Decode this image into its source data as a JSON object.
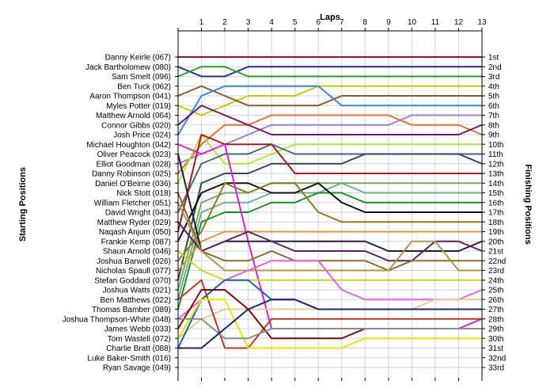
{
  "chart_data": {
    "type": "line",
    "title": "",
    "top_axis_title": "Laps",
    "left_axis_title": "Starting Positions",
    "right_axis_title": "Finishing Positions",
    "laps": [
      0,
      1,
      2,
      3,
      4,
      5,
      6,
      7,
      8,
      9,
      10,
      11,
      12,
      13
    ],
    "lap_tick_labels": [
      "1",
      "2",
      "3",
      "4",
      "5",
      "6",
      "7",
      "8",
      "9",
      "10",
      "11",
      "12",
      "13"
    ],
    "grid": true,
    "starting_labels": [
      "Danny Keirle (067)",
      "Jack Bartholomew (080)",
      "Sam Smelt (096)",
      "Ben Tuck (062)",
      "Aaron Thompson (041)",
      "Myles Potter (019)",
      "Matthew Arnold (064)",
      "Connor Gibbs (020)",
      "Josh Price (024)",
      "Michael Houghton (042)",
      "Oliver Peacock (023)",
      "Elliot Goodman (028)",
      "Danny Robinson (025)",
      "Daniel O'Beirne (036)",
      "Nick Stott (018)",
      "William Fletcher (051)",
      "David Wright (043)",
      "Matthew Ryder (029)",
      "Naqash Anjum (050)",
      "Frankie Kemp (087)",
      "Shaun Arnold (046)",
      "Joshua Barwell (026)",
      "Nicholas Spaull (077)",
      "Stefan Goddard (070)",
      "Joshua Watts (021)",
      "Ben Matthews (022)",
      "Thomas Bamber (089)",
      "Joshua Thompson-White (048)",
      "James Webb (033)",
      "Tom Wastell (072)",
      "Charlie Bratt (088)",
      "Luke Baker-Smith (016)",
      "Ryan Savage (049)"
    ],
    "finishing_labels": [
      "1st",
      "2nd",
      "3rd",
      "4th",
      "5th",
      "6th",
      "7th",
      "8th",
      "9th",
      "10th",
      "11th",
      "12th",
      "13th",
      "14th",
      "15th",
      "16th",
      "17th",
      "18th",
      "19th",
      "20th",
      "21st",
      "22nd",
      "23rd",
      "24th",
      "25th",
      "26th",
      "27th",
      "28th",
      "29th",
      "30th",
      "31st",
      "32nd",
      "33rd"
    ],
    "series": [
      {
        "color": "#8b1a1a",
        "positions": [
          1,
          1,
          1,
          1,
          1,
          1,
          1,
          1,
          1,
          1,
          1,
          1,
          1,
          1
        ]
      },
      {
        "color": "#1e2e8c",
        "positions": [
          2,
          3,
          3,
          2,
          2,
          2,
          2,
          2,
          2,
          2,
          2,
          2,
          2,
          2
        ]
      },
      {
        "color": "#2a9d2a",
        "positions": [
          3,
          2,
          2,
          3,
          3,
          3,
          3,
          3,
          3,
          3,
          3,
          3,
          3,
          3
        ]
      },
      {
        "color": "#c8c800",
        "positions": [
          6,
          7,
          6,
          5,
          5,
          5,
          4,
          4,
          4,
          4,
          4,
          4,
          4,
          4
        ]
      },
      {
        "color": "#8b5a2b",
        "positions": [
          5,
          4,
          5,
          6,
          6,
          6,
          6,
          5,
          5,
          5,
          5,
          5,
          5,
          5
        ]
      },
      {
        "color": "#3a86d4",
        "positions": [
          9,
          5,
          4,
          4,
          4,
          4,
          4,
          6,
          6,
          6,
          6,
          6,
          6,
          6
        ]
      },
      {
        "color": "#9a7fcf",
        "positions": [
          12,
          11,
          10,
          9,
          8,
          8,
          8,
          8,
          8,
          8,
          7,
          7,
          7,
          7
        ]
      },
      {
        "color": "#e07030",
        "positions": [
          13,
          10,
          8,
          8,
          7,
          7,
          7,
          7,
          7,
          7,
          8,
          8,
          8,
          9
        ]
      },
      {
        "color": "#6a1a6a",
        "positions": [
          8,
          6,
          7,
          8,
          9,
          9,
          9,
          9,
          9,
          9,
          9,
          9,
          9,
          8
        ]
      },
      {
        "color": "#a6e83a",
        "positions": [
          14,
          9,
          12,
          12,
          11,
          10,
          10,
          10,
          10,
          10,
          10,
          10,
          10,
          10
        ]
      },
      {
        "color": "#4a6a6a",
        "positions": [
          17,
          12,
          11,
          11,
          10,
          11,
          11,
          11,
          11,
          11,
          11,
          11,
          11,
          11
        ]
      },
      {
        "color": "#2e4a4a",
        "positions": [
          24,
          14,
          13,
          13,
          12,
          12,
          12,
          12,
          11,
          11,
          11,
          11,
          11,
          12
        ]
      },
      {
        "color": "#a01e1e",
        "positions": [
          19,
          9,
          10,
          10,
          10,
          13,
          13,
          13,
          13,
          13,
          13,
          13,
          13,
          13
        ]
      },
      {
        "color": "#76a85e",
        "positions": [
          25,
          16,
          15,
          15,
          14,
          14,
          14,
          14,
          14,
          14,
          14,
          14,
          14,
          14
        ]
      },
      {
        "color": "#6ab08a",
        "positions": [
          26,
          17,
          16,
          16,
          15,
          15,
          15,
          14,
          15,
          15,
          15,
          15,
          15,
          15
        ]
      },
      {
        "color": "#1e8c2a",
        "positions": [
          27,
          18,
          17,
          17,
          16,
          16,
          15,
          15,
          16,
          16,
          16,
          16,
          16,
          16
        ]
      },
      {
        "color": "#101010",
        "positions": [
          20,
          15,
          14,
          14,
          15,
          15,
          14,
          16,
          17,
          17,
          17,
          17,
          17,
          17
        ]
      },
      {
        "color": "#8a7a1a",
        "positions": [
          22,
          19,
          14,
          15,
          14,
          14,
          17,
          18,
          18,
          18,
          18,
          18,
          18,
          18
        ]
      },
      {
        "color": "#d9963a",
        "positions": [
          23,
          20,
          19,
          19,
          19,
          19,
          19,
          19,
          19,
          19,
          19,
          19,
          19,
          19
        ]
      },
      {
        "color": "#dd1ed8",
        "positions": [
          10,
          11,
          10,
          20,
          29,
          29,
          29,
          29,
          29,
          29,
          29,
          29,
          29,
          28
        ]
      },
      {
        "color": "#2a1a3a",
        "positions": [
          11,
          21,
          20,
          20,
          20,
          20,
          20,
          20,
          20,
          21,
          21,
          21,
          21,
          20
        ]
      },
      {
        "color": "#5a2060",
        "positions": [
          18,
          21,
          20,
          19,
          20,
          21,
          21,
          21,
          21,
          22,
          22,
          20,
          20,
          21
        ]
      },
      {
        "color": "#8a6a2a",
        "positions": [
          15,
          21,
          22,
          22,
          21,
          22,
          22,
          22,
          22,
          23,
          22,
          22,
          22,
          22
        ]
      },
      {
        "color": "#a89a4a",
        "positions": [
          16,
          21,
          23,
          23,
          23,
          23,
          23,
          23,
          23,
          23,
          20,
          20,
          23,
          23
        ]
      },
      {
        "color": "#c8d820",
        "positions": [
          21,
          23,
          24,
          24,
          24,
          24,
          24,
          24,
          24,
          24,
          24,
          24,
          24,
          24
        ]
      },
      {
        "color": "#e060e0",
        "positions": [
          28,
          26,
          24,
          23,
          22,
          22,
          22,
          25,
          26,
          26,
          26,
          26,
          26,
          25
        ]
      },
      {
        "color": "#e8c898",
        "positions": [
          30,
          28,
          27,
          27,
          27,
          27,
          27,
          27,
          27,
          27,
          27,
          26,
          26,
          26
        ]
      },
      {
        "color": "#2060b0",
        "positions": [
          31,
          26,
          24,
          24,
          26,
          26,
          27,
          27,
          27,
          27,
          27,
          27,
          27,
          27
        ]
      },
      {
        "color": "#b43c20",
        "positions": [
          26,
          24,
          31,
          31,
          28,
          28,
          28,
          28,
          28,
          28,
          28,
          28,
          28,
          28
        ]
      },
      {
        "color": "#7a0a0a",
        "positions": [
          29,
          25,
          25,
          27,
          30,
          30,
          30,
          30,
          29,
          29,
          29,
          29,
          29,
          29
        ]
      },
      {
        "color": "#e6e600",
        "positions": [
          30,
          26,
          26,
          31,
          31,
          31,
          31,
          31,
          30,
          30,
          30,
          30,
          30,
          30
        ]
      },
      {
        "color": "#8a8a8a",
        "positions": [
          28,
          28,
          30,
          30,
          29,
          29,
          29,
          29,
          29,
          29,
          29,
          29,
          29,
          29
        ]
      },
      {
        "color": "#202070",
        "positions": [
          31,
          31,
          29,
          27,
          26,
          26,
          27,
          27,
          27,
          27,
          27,
          27,
          27,
          27
        ]
      }
    ]
  }
}
